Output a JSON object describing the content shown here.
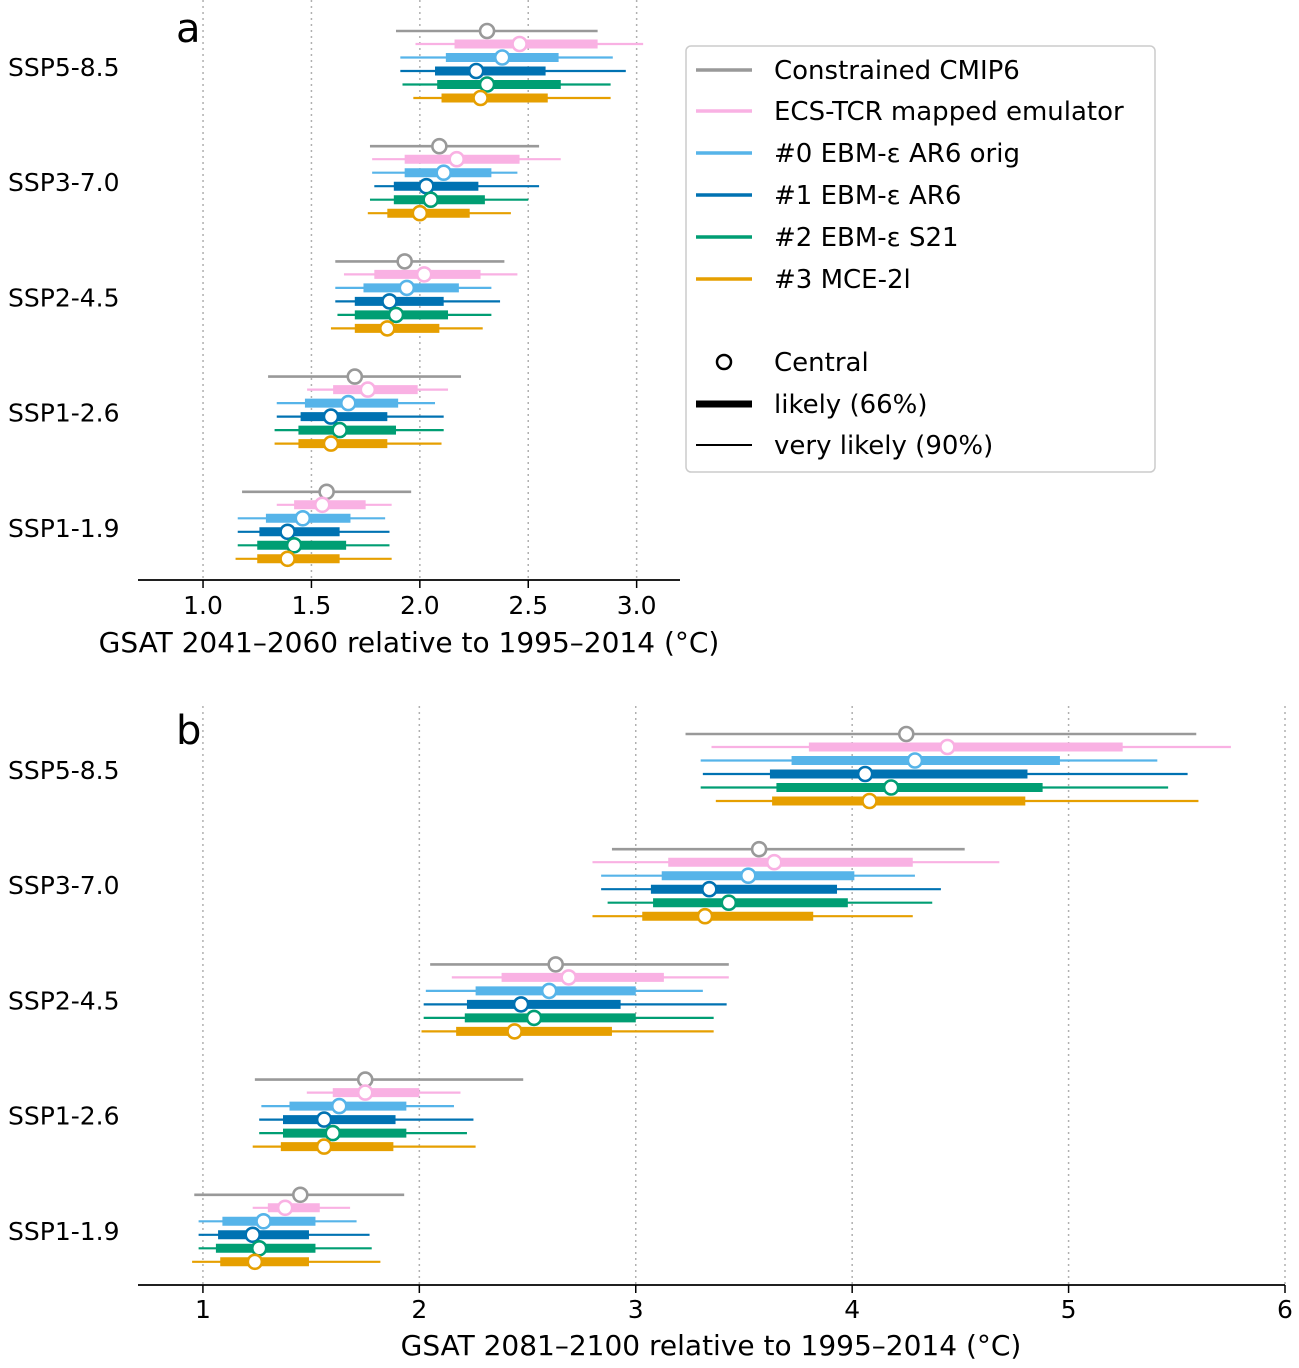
{
  "chart_data": [
    {
      "type": "interval",
      "panel_label": "a",
      "xlabel": "GSAT 2041–2060 relative to 1995–2014 (°C)",
      "xlim": [
        0.7,
        3.2
      ],
      "xticks": [
        1.0,
        1.5,
        2.0,
        2.5,
        3.0
      ],
      "xtick_labels": [
        "1.0",
        "1.5",
        "2.0",
        "2.5",
        "3.0"
      ],
      "grid": "vertical dotted",
      "categories": [
        "SSP5-8.5",
        "SSP3-7.0",
        "SSP2-4.5",
        "SSP1-2.6",
        "SSP1-1.9"
      ],
      "series": [
        {
          "name": "Constrained CMIP6",
          "color": "#999999",
          "central": [
            2.31,
            2.09,
            1.93,
            1.7,
            1.57
          ],
          "likely": [
            null,
            null,
            null,
            null,
            null
          ],
          "very_likely": [
            [
              1.89,
              2.82
            ],
            [
              1.77,
              2.55
            ],
            [
              1.61,
              2.39
            ],
            [
              1.3,
              2.19
            ],
            [
              1.18,
              1.96
            ]
          ]
        },
        {
          "name": "ECS-TCR mapped emulator",
          "color": "#F9B1E3",
          "central": [
            2.46,
            2.17,
            2.02,
            1.76,
            1.55
          ],
          "likely": [
            [
              2.16,
              2.82
            ],
            [
              1.93,
              2.46
            ],
            [
              1.79,
              2.28
            ],
            [
              1.6,
              1.99
            ],
            [
              1.42,
              1.75
            ]
          ],
          "very_likely": [
            [
              1.98,
              3.03
            ],
            [
              1.78,
              2.65
            ],
            [
              1.65,
              2.45
            ],
            [
              1.48,
              2.13
            ],
            [
              1.34,
              1.87
            ]
          ]
        },
        {
          "name": "#0 EBM-ε AR6 orig",
          "color": "#56B4E9",
          "central": [
            2.38,
            2.11,
            1.94,
            1.67,
            1.46
          ],
          "likely": [
            [
              2.12,
              2.64
            ],
            [
              1.93,
              2.33
            ],
            [
              1.74,
              2.18
            ],
            [
              1.47,
              1.9
            ],
            [
              1.29,
              1.68
            ]
          ],
          "very_likely": [
            [
              1.91,
              2.89
            ],
            [
              1.78,
              2.45
            ],
            [
              1.61,
              2.33
            ],
            [
              1.34,
              2.07
            ],
            [
              1.16,
              1.84
            ]
          ]
        },
        {
          "name": "#1 EBM-ε AR6",
          "color": "#0072B2",
          "central": [
            2.26,
            2.03,
            1.86,
            1.59,
            1.39
          ],
          "likely": [
            [
              2.07,
              2.58
            ],
            [
              1.88,
              2.27
            ],
            [
              1.7,
              2.11
            ],
            [
              1.45,
              1.85
            ],
            [
              1.26,
              1.63
            ]
          ],
          "very_likely": [
            [
              1.91,
              2.95
            ],
            [
              1.79,
              2.55
            ],
            [
              1.61,
              2.37
            ],
            [
              1.34,
              2.11
            ],
            [
              1.16,
              1.86
            ]
          ]
        },
        {
          "name": "#2 EBM-ε S21",
          "color": "#009E73",
          "central": [
            2.31,
            2.05,
            1.89,
            1.63,
            1.42
          ],
          "likely": [
            [
              2.08,
              2.65
            ],
            [
              1.88,
              2.3
            ],
            [
              1.7,
              2.13
            ],
            [
              1.44,
              1.89
            ],
            [
              1.25,
              1.66
            ]
          ],
          "very_likely": [
            [
              1.92,
              2.88
            ],
            [
              1.77,
              2.5
            ],
            [
              1.62,
              2.33
            ],
            [
              1.33,
              2.11
            ],
            [
              1.16,
              1.86
            ]
          ]
        },
        {
          "name": "#3 MCE-2l",
          "color": "#E69F00",
          "central": [
            2.28,
            2.0,
            1.85,
            1.59,
            1.39
          ],
          "likely": [
            [
              2.1,
              2.59
            ],
            [
              1.85,
              2.23
            ],
            [
              1.7,
              2.09
            ],
            [
              1.44,
              1.85
            ],
            [
              1.25,
              1.63
            ]
          ],
          "very_likely": [
            [
              1.97,
              2.88
            ],
            [
              1.76,
              2.42
            ],
            [
              1.59,
              2.29
            ],
            [
              1.33,
              2.1
            ],
            [
              1.15,
              1.87
            ]
          ]
        }
      ]
    },
    {
      "type": "interval",
      "panel_label": "b",
      "xlabel": "GSAT 2081–2100 relative to 1995–2014 (°C)",
      "xlim": [
        0.7,
        6.0
      ],
      "xticks": [
        1,
        2,
        3,
        4,
        5,
        6
      ],
      "xtick_labels": [
        "1",
        "2",
        "3",
        "4",
        "5",
        "6"
      ],
      "grid": "vertical dotted",
      "categories": [
        "SSP5-8.5",
        "SSP3-7.0",
        "SSP2-4.5",
        "SSP1-2.6",
        "SSP1-1.9"
      ],
      "series": [
        {
          "name": "Constrained CMIP6",
          "color": "#999999",
          "central": [
            4.25,
            3.57,
            2.63,
            1.75,
            1.45
          ],
          "likely": [
            null,
            null,
            null,
            null,
            null
          ],
          "very_likely": [
            [
              3.23,
              5.59
            ],
            [
              2.89,
              4.52
            ],
            [
              2.05,
              3.43
            ],
            [
              1.24,
              2.48
            ],
            [
              0.96,
              1.93
            ]
          ]
        },
        {
          "name": "ECS-TCR mapped emulator",
          "color": "#F9B1E3",
          "central": [
            4.44,
            3.64,
            2.69,
            1.75,
            1.38
          ],
          "likely": [
            [
              3.8,
              5.25
            ],
            [
              3.15,
              4.28
            ],
            [
              2.38,
              3.13
            ],
            [
              1.6,
              2.0
            ],
            [
              1.3,
              1.54
            ]
          ],
          "very_likely": [
            [
              3.35,
              5.75
            ],
            [
              2.8,
              4.68
            ],
            [
              2.15,
              3.43
            ],
            [
              1.48,
              2.19
            ],
            [
              1.23,
              1.68
            ]
          ]
        },
        {
          "name": "#0 EBM-ε AR6 orig",
          "color": "#56B4E9",
          "central": [
            4.29,
            3.52,
            2.6,
            1.63,
            1.28
          ],
          "likely": [
            [
              3.72,
              4.96
            ],
            [
              3.12,
              4.01
            ],
            [
              2.26,
              3.0
            ],
            [
              1.4,
              1.94
            ],
            [
              1.09,
              1.52
            ]
          ],
          "very_likely": [
            [
              3.3,
              5.41
            ],
            [
              2.84,
              4.29
            ],
            [
              2.03,
              3.31
            ],
            [
              1.27,
              2.16
            ],
            [
              0.98,
              1.71
            ]
          ]
        },
        {
          "name": "#1 EBM-ε AR6",
          "color": "#0072B2",
          "central": [
            4.06,
            3.34,
            2.47,
            1.56,
            1.23
          ],
          "likely": [
            [
              3.62,
              4.81
            ],
            [
              3.07,
              3.93
            ],
            [
              2.22,
              2.93
            ],
            [
              1.37,
              1.89
            ],
            [
              1.07,
              1.49
            ]
          ],
          "very_likely": [
            [
              3.31,
              5.55
            ],
            [
              2.84,
              4.41
            ],
            [
              2.02,
              3.42
            ],
            [
              1.26,
              2.25
            ],
            [
              0.98,
              1.77
            ]
          ]
        },
        {
          "name": "#2 EBM-ε S21",
          "color": "#009E73",
          "central": [
            4.18,
            3.43,
            2.53,
            1.6,
            1.26
          ],
          "likely": [
            [
              3.65,
              4.88
            ],
            [
              3.08,
              3.98
            ],
            [
              2.21,
              3.0
            ],
            [
              1.37,
              1.94
            ],
            [
              1.06,
              1.52
            ]
          ],
          "very_likely": [
            [
              3.3,
              5.46
            ],
            [
              2.87,
              4.37
            ],
            [
              2.02,
              3.36
            ],
            [
              1.26,
              2.22
            ],
            [
              0.98,
              1.78
            ]
          ]
        },
        {
          "name": "#3 MCE-2l",
          "color": "#E69F00",
          "central": [
            4.08,
            3.32,
            2.44,
            1.56,
            1.24
          ],
          "likely": [
            [
              3.63,
              4.8
            ],
            [
              3.03,
              3.82
            ],
            [
              2.17,
              2.89
            ],
            [
              1.36,
              1.88
            ],
            [
              1.08,
              1.49
            ]
          ],
          "very_likely": [
            [
              3.37,
              5.6
            ],
            [
              2.8,
              4.28
            ],
            [
              2.01,
              3.36
            ],
            [
              1.23,
              2.26
            ],
            [
              0.95,
              1.82
            ]
          ]
        }
      ]
    }
  ],
  "legend": {
    "placement": "top-right of panel a",
    "series_labels": [
      "Constrained CMIP6",
      "ECS-TCR mapped emulator",
      "#0 EBM-ε AR6 orig",
      "#1 EBM-ε AR6",
      "#2 EBM-ε S21",
      "#3 MCE-2l"
    ],
    "marker_labels": [
      "Central",
      "likely (66%)",
      "very likely (90%)"
    ]
  }
}
